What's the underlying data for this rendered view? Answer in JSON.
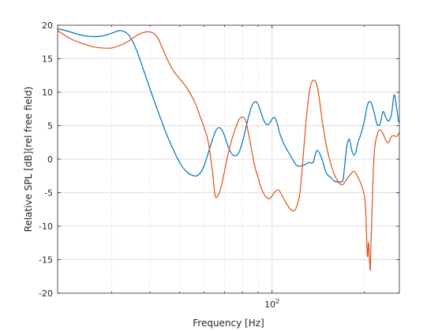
{
  "chart_data": {
    "type": "line",
    "xlabel": "Frequency [Hz]",
    "ylabel": "Relative SPL  [dB](rel free field)",
    "xscale": "log",
    "xlim": [
      20,
      260
    ],
    "ylim": [
      -20,
      20
    ],
    "yticks": [
      -20,
      -15,
      -10,
      -5,
      0,
      5,
      10,
      15,
      20
    ],
    "xticks": [
      100
    ],
    "xtick_labels": [
      {
        "base": "10",
        "exp": "2"
      }
    ],
    "grid": true,
    "series": [
      {
        "color": "#0072BD",
        "x": [
          20,
          22,
          24,
          26,
          28,
          30,
          32,
          34,
          36,
          38,
          40,
          43,
          46,
          50,
          53,
          56,
          58,
          60,
          62,
          64,
          66,
          68,
          70,
          72,
          74,
          76,
          78,
          80,
          82,
          84,
          86,
          88,
          90,
          92,
          94,
          96,
          98,
          100,
          102,
          104,
          106,
          110,
          115,
          120,
          125,
          128,
          132,
          136,
          140,
          145,
          150,
          155,
          160,
          165,
          170,
          172,
          175,
          178,
          180,
          182,
          185,
          188,
          190,
          195,
          200,
          205,
          210,
          215,
          220,
          225,
          230,
          235,
          240,
          245,
          250,
          255,
          258,
          260
        ],
        "y": [
          19.5,
          19,
          18.5,
          18.3,
          18.4,
          18.8,
          19.2,
          18.6,
          16.5,
          13.5,
          10.5,
          6.5,
          3,
          -0.5,
          -2,
          -2.5,
          -2.2,
          -1,
          1,
          3,
          4.5,
          4.6,
          3.5,
          1.8,
          0.8,
          0.5,
          1,
          2.5,
          4.5,
          6.5,
          8,
          8.6,
          8.2,
          7,
          5.8,
          5.2,
          5.3,
          6,
          6.2,
          5.3,
          3.8,
          2,
          0.5,
          -0.9,
          -1,
          -0.8,
          -0.5,
          -0.5,
          1.3,
          0.2,
          -2,
          -2.7,
          -3.3,
          -3.4,
          -3.2,
          -1.5,
          1.8,
          3,
          2.4,
          1.3,
          0.6,
          1.2,
          2.3,
          3.8,
          5.8,
          8.2,
          8.5,
          7,
          5.2,
          5.3,
          7.1,
          6.2,
          5.7,
          6.7,
          9.6,
          7.5,
          5.8,
          5.5
        ]
      },
      {
        "color": "#D95319",
        "x": [
          20,
          22,
          24,
          26,
          28,
          30,
          32,
          34,
          36,
          38,
          40,
          42,
          44,
          46,
          48,
          50,
          53,
          56,
          58,
          60,
          62,
          64,
          65,
          66,
          68,
          70,
          72,
          74,
          76,
          78,
          80,
          82,
          84,
          86,
          88,
          90,
          92,
          95,
          98,
          100,
          102,
          105,
          108,
          110,
          112,
          115,
          118,
          120,
          123,
          125,
          127,
          129,
          131,
          133,
          135,
          137,
          139,
          141,
          143,
          146,
          150,
          155,
          160,
          165,
          170,
          175,
          180,
          185,
          190,
          195,
          200,
          202,
          203,
          204,
          205,
          206,
          207,
          208,
          209,
          210,
          212,
          214,
          216,
          218,
          220,
          223,
          226,
          230,
          235,
          240,
          245,
          250,
          255,
          260
        ],
        "y": [
          19.2,
          18,
          17.3,
          16.8,
          16.6,
          16.6,
          17,
          17.6,
          18.4,
          18.9,
          19,
          18.4,
          16.5,
          14.5,
          13,
          12,
          10.5,
          8.5,
          6.6,
          4.8,
          2.5,
          -2,
          -5,
          -5.7,
          -4.4,
          -1.8,
          0.9,
          3,
          4.6,
          5.9,
          6.3,
          5.8,
          3.6,
          1.1,
          -1.2,
          -2.7,
          -4.2,
          -5.5,
          -5.9,
          -5.5,
          -4.9,
          -4.6,
          -5.5,
          -6.2,
          -6.8,
          -7.5,
          -7.7,
          -7.2,
          -5.3,
          -2.1,
          1.8,
          5.5,
          8.5,
          10.6,
          11.6,
          11.8,
          11.5,
          10.4,
          8.6,
          5.5,
          2.2,
          -0.5,
          -2.4,
          -3.5,
          -3.8,
          -3,
          -2.3,
          -1.8,
          -2.6,
          -3.7,
          -5.5,
          -7.7,
          -10.5,
          -13.7,
          -14.5,
          -12.5,
          -13.3,
          -15.4,
          -16.5,
          -13,
          -7,
          -1.2,
          1.6,
          2.9,
          3.6,
          4.3,
          4.3,
          3.8,
          2.8,
          2.5,
          3.4,
          3.5,
          3.4,
          4
        ]
      }
    ]
  }
}
